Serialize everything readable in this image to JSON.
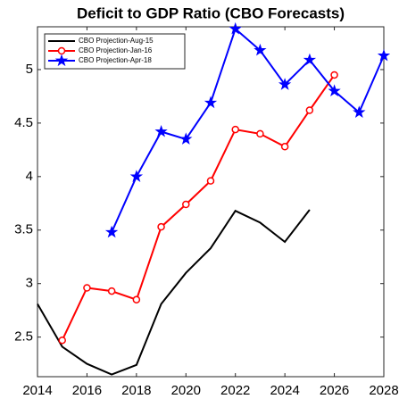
{
  "chart_data": {
    "type": "line",
    "title": "Deficit to GDP Ratio (CBO Forecasts)",
    "xlim": [
      2014,
      2028
    ],
    "xticks": [
      2014,
      2016,
      2018,
      2020,
      2022,
      2024,
      2026,
      2028
    ],
    "ylim": [
      2.13,
      5.4
    ],
    "yticks": [
      2.5,
      3,
      3.5,
      4,
      4.5,
      5
    ],
    "grid": false,
    "legend": "upper left",
    "series": [
      {
        "name": "CBO Projection-Aug-15",
        "color": "#000000",
        "marker": "none",
        "x": [
          2014,
          2015,
          2016,
          2017,
          2018,
          2019,
          2020,
          2021,
          2022,
          2023,
          2024,
          2025
        ],
        "values": [
          2.81,
          2.41,
          2.25,
          2.15,
          2.24,
          2.81,
          3.1,
          3.33,
          3.68,
          3.57,
          3.39,
          3.69
        ]
      },
      {
        "name": "CBO Projection-Jan-16",
        "color": "#ff0000",
        "marker": "circle",
        "x": [
          2015,
          2016,
          2017,
          2018,
          2019,
          2020,
          2021,
          2022,
          2023,
          2024,
          2025,
          2026
        ],
        "values": [
          2.47,
          2.96,
          2.93,
          2.85,
          3.53,
          3.74,
          3.96,
          4.44,
          4.4,
          4.28,
          4.62,
          4.95
        ]
      },
      {
        "name": "CBO Projection-Apr-18",
        "color": "#0000ff",
        "marker": "star",
        "x": [
          2017,
          2018,
          2019,
          2020,
          2021,
          2022,
          2023,
          2024,
          2025,
          2026,
          2027,
          2028
        ],
        "values": [
          3.48,
          4.0,
          4.42,
          4.35,
          4.69,
          5.38,
          5.18,
          4.86,
          5.09,
          4.8,
          4.6,
          5.13
        ]
      }
    ]
  }
}
